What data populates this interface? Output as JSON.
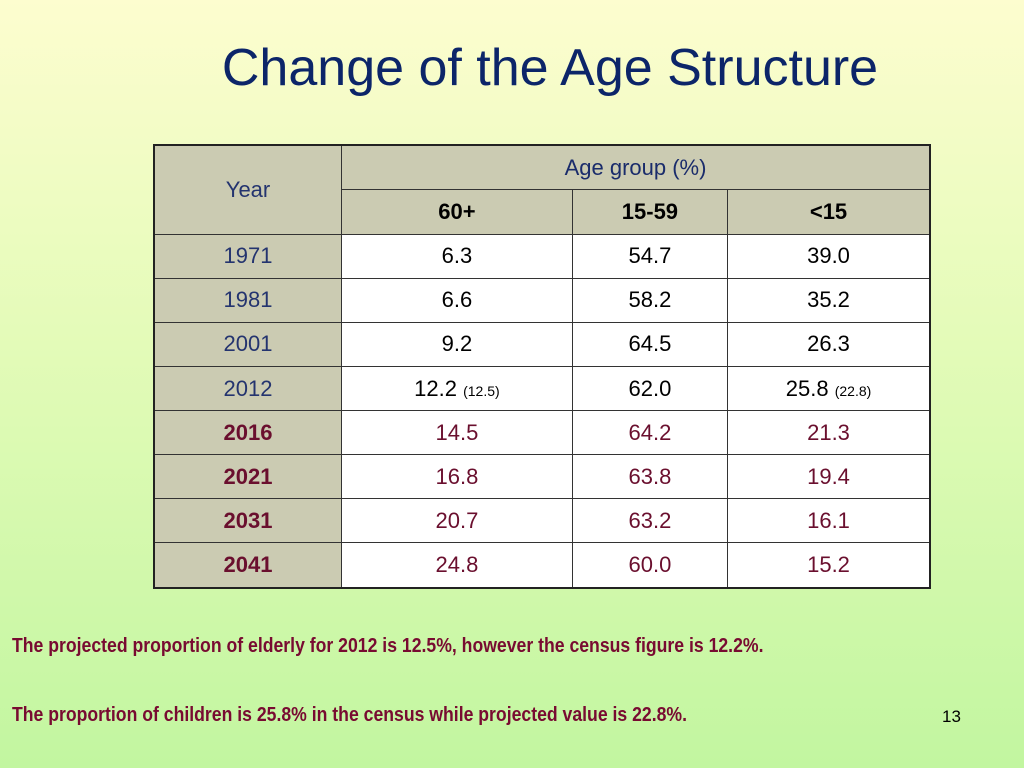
{
  "slide": {
    "title": "Change of the Age Structure",
    "page_number": "13"
  },
  "table": {
    "year_header": "Year",
    "group_header": "Age group (%)",
    "columns": [
      "60+",
      "15-59",
      "<15"
    ],
    "rows": [
      {
        "year": "1971",
        "c60": "6.3",
        "c60_note": "",
        "c1559": "54.7",
        "c15": "39.0",
        "c15_note": "",
        "projected": false
      },
      {
        "year": "1981",
        "c60": "6.6",
        "c60_note": "",
        "c1559": "58.2",
        "c15": "35.2",
        "c15_note": "",
        "projected": false
      },
      {
        "year": "2001",
        "c60": "9.2",
        "c60_note": "",
        "c1559": "64.5",
        "c15": "26.3",
        "c15_note": "",
        "projected": false
      },
      {
        "year": "2012",
        "c60": "12.2",
        "c60_note": "(12.5)",
        "c1559": "62.0",
        "c15": "25.8",
        "c15_note": "(22.8)",
        "projected": false
      },
      {
        "year": "2016",
        "c60": "14.5",
        "c60_note": "",
        "c1559": "64.2",
        "c15": "21.3",
        "c15_note": "",
        "projected": true
      },
      {
        "year": "2021",
        "c60": "16.8",
        "c60_note": "",
        "c1559": "63.8",
        "c15": "19.4",
        "c15_note": "",
        "projected": true
      },
      {
        "year": "2031",
        "c60": "20.7",
        "c60_note": "",
        "c1559": "63.2",
        "c15": "16.1",
        "c15_note": "",
        "projected": true
      },
      {
        "year": "2041",
        "c60": "24.8",
        "c60_note": "",
        "c1559": "60.0",
        "c15": "15.2",
        "c15_note": "",
        "projected": true
      }
    ]
  },
  "notes": [
    "The projected proportion of elderly for 2012 is 12.5%, however the census figure is 12.2%.",
    "The proportion of children is 25.8% in the census while projected value is 22.8%."
  ],
  "colors": {
    "title": "#0c2569",
    "header_bg": "#cbcbb2",
    "projected_text": "#6a0f2e",
    "note_text": "#780b31"
  }
}
